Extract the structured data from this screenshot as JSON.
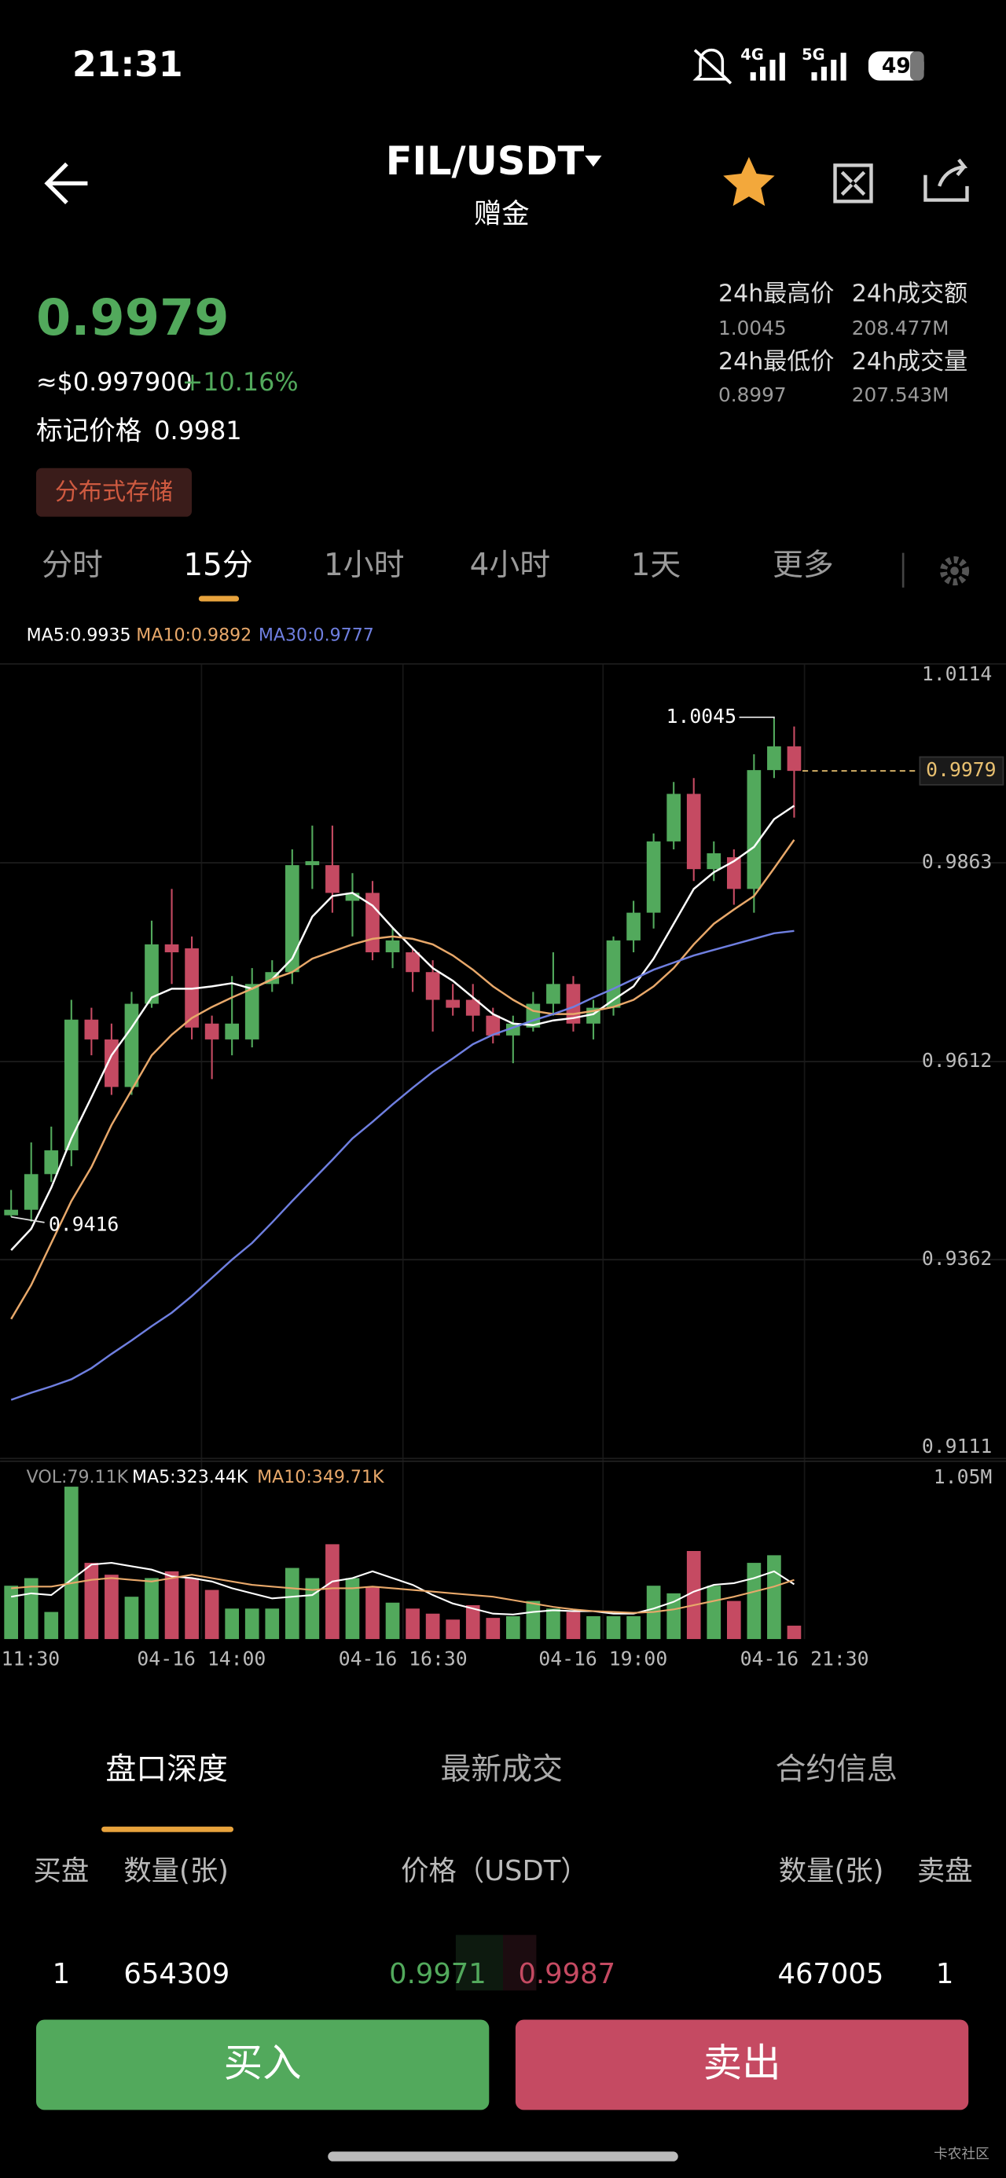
{
  "status": {
    "time": "21:31",
    "net1": "4G",
    "net2": "5G",
    "battery": "49"
  },
  "header": {
    "title": "FIL/USDT",
    "subtitle": "赠金"
  },
  "ticker": {
    "price": "0.9979",
    "usd": "≈$0.997900",
    "change": "+10.16%",
    "mark_label": "标记价格",
    "mark_value": "0.9981",
    "tag": "分布式存储",
    "stats": [
      {
        "label": "24h最高价",
        "value": "1.0045"
      },
      {
        "label": "24h成交额",
        "value": "208.477M"
      },
      {
        "label": "24h最低价",
        "value": "0.8997"
      },
      {
        "label": "24h成交量",
        "value": "207.543M"
      }
    ]
  },
  "intervals": [
    "分时",
    "15分",
    "1小时",
    "4小时",
    "1天",
    "更多"
  ],
  "chart_data": {
    "type": "candlestick",
    "up_color": "#52a95c",
    "down_color": "#c54a62",
    "ylim": [
      0.9111,
      1.0114
    ],
    "yticks": [
      1.0114,
      0.9863,
      0.9612,
      0.9362,
      0.9111
    ],
    "grid": true,
    "open": [
      0.9418,
      0.9425,
      0.947,
      0.95,
      0.9665,
      0.964,
      0.958,
      0.9685,
      0.976,
      0.9755,
      0.966,
      0.964,
      0.964,
      0.971,
      0.9725,
      0.986,
      0.986,
      0.9815,
      0.9825,
      0.975,
      0.975,
      0.9725,
      0.969,
      0.969,
      0.967,
      0.9645,
      0.9655,
      0.9685,
      0.971,
      0.966,
      0.968,
      0.9765,
      0.98,
      0.989,
      0.995,
      0.9855,
      0.987,
      0.983,
      0.998,
      1.001
    ],
    "high": [
      0.945,
      0.951,
      0.953,
      0.969,
      0.968,
      0.966,
      0.97,
      0.979,
      0.983,
      0.977,
      0.967,
      0.972,
      0.973,
      0.974,
      0.988,
      0.991,
      0.991,
      0.985,
      0.984,
      0.978,
      0.9755,
      0.974,
      0.971,
      0.971,
      0.968,
      0.967,
      0.97,
      0.975,
      0.972,
      0.969,
      0.977,
      0.9815,
      0.99,
      0.9965,
      0.997,
      0.989,
      0.988,
      1.0,
      1.0045,
      1.0035
    ],
    "low": [
      0.9416,
      0.941,
      0.946,
      0.948,
      0.962,
      0.957,
      0.957,
      0.968,
      0.971,
      0.964,
      0.959,
      0.962,
      0.963,
      0.97,
      0.971,
      0.983,
      0.98,
      0.977,
      0.974,
      0.973,
      0.97,
      0.965,
      0.967,
      0.965,
      0.9635,
      0.961,
      0.965,
      0.967,
      0.965,
      0.964,
      0.967,
      0.975,
      0.978,
      0.988,
      0.984,
      0.984,
      0.981,
      0.98,
      0.997,
      0.992
    ],
    "close": [
      0.9425,
      0.947,
      0.95,
      0.9665,
      0.964,
      0.958,
      0.9685,
      0.976,
      0.975,
      0.9655,
      0.964,
      0.966,
      0.971,
      0.9725,
      0.986,
      0.9865,
      0.9825,
      0.9825,
      0.975,
      0.9765,
      0.9725,
      0.969,
      0.968,
      0.967,
      0.9645,
      0.966,
      0.9685,
      0.971,
      0.966,
      0.968,
      0.9765,
      0.98,
      0.989,
      0.995,
      0.9855,
      0.9875,
      0.983,
      0.998,
      1.001,
      0.9979
    ],
    "series": [
      {
        "name": "MA5:0.9935",
        "color": "#ffffff",
        "values": [
          0.9374,
          0.9401,
          0.9453,
          0.9515,
          0.9567,
          0.962,
          0.9655,
          0.9693,
          0.9704,
          0.9704,
          0.9707,
          0.9711,
          0.9704,
          0.9716,
          0.9742,
          0.9795,
          0.9821,
          0.9825,
          0.9809,
          0.9781,
          0.9755,
          0.973,
          0.9714,
          0.9693,
          0.9672,
          0.966,
          0.9658,
          0.9664,
          0.9667,
          0.9672,
          0.969,
          0.9707,
          0.9742,
          0.9786,
          0.983,
          0.9851,
          0.9865,
          0.9883,
          0.9918,
          0.9935
        ]
      },
      {
        "name": "MA10:0.9892",
        "color": "#e8a86a",
        "values": [
          0.9287,
          0.933,
          0.9383,
          0.9436,
          0.9479,
          0.9532,
          0.9576,
          0.962,
          0.9646,
          0.9667,
          0.9681,
          0.9693,
          0.9704,
          0.9716,
          0.9725,
          0.9742,
          0.9751,
          0.976,
          0.9767,
          0.977,
          0.9767,
          0.976,
          0.9746,
          0.9728,
          0.9707,
          0.969,
          0.9676,
          0.9672,
          0.9672,
          0.9676,
          0.9681,
          0.969,
          0.9707,
          0.973,
          0.976,
          0.9786,
          0.9804,
          0.9821,
          0.9856,
          0.9892
        ]
      },
      {
        "name": "MA30:0.9777",
        "color": "#6f7fe0",
        "values": [
          0.9185,
          0.9194,
          0.9202,
          0.9211,
          0.9225,
          0.9243,
          0.926,
          0.9278,
          0.9295,
          0.9316,
          0.9339,
          0.9362,
          0.9383,
          0.9409,
          0.9436,
          0.9462,
          0.9488,
          0.9515,
          0.9536,
          0.9558,
          0.9579,
          0.9599,
          0.9616,
          0.9634,
          0.9646,
          0.9655,
          0.9664,
          0.9672,
          0.9681,
          0.9693,
          0.9704,
          0.9716,
          0.9728,
          0.9737,
          0.9746,
          0.9753,
          0.976,
          0.9767,
          0.9774,
          0.9777
        ]
      }
    ],
    "volume": {
      "legend": "VOL:79.11K",
      "ylim": [
        0,
        1050000
      ],
      "yticks": [
        {
          "value": 1050000,
          "label": "1.05M"
        }
      ],
      "values": [
        315000,
        360000,
        160000,
        900000,
        450000,
        380000,
        250000,
        360000,
        400000,
        360000,
        290000,
        180000,
        180000,
        180000,
        420000,
        360000,
        560000,
        360000,
        310000,
        215000,
        180000,
        150000,
        115000,
        200000,
        125000,
        135000,
        225000,
        180000,
        160000,
        135000,
        135000,
        135000,
        315000,
        270000,
        520000,
        315000,
        225000,
        450000,
        495000,
        79110
      ],
      "series": [
        {
          "name": "MA5:323.44K",
          "color": "#ffffff",
          "values": [
            250000,
            270000,
            260000,
            350000,
            440000,
            450000,
            430000,
            410000,
            370000,
            360000,
            340000,
            300000,
            270000,
            240000,
            250000,
            260000,
            340000,
            360000,
            400000,
            360000,
            320000,
            260000,
            210000,
            180000,
            150000,
            145000,
            160000,
            170000,
            165000,
            165000,
            150000,
            150000,
            180000,
            220000,
            280000,
            320000,
            330000,
            360000,
            400000,
            323440
          ]
        },
        {
          "name": "MA10:349.71K",
          "color": "#e8a86a",
          "values": [
            300000,
            310000,
            310000,
            330000,
            350000,
            360000,
            350000,
            340000,
            360000,
            380000,
            360000,
            340000,
            320000,
            310000,
            300000,
            290000,
            300000,
            300000,
            310000,
            300000,
            290000,
            280000,
            270000,
            260000,
            250000,
            230000,
            210000,
            190000,
            175000,
            165000,
            160000,
            155000,
            160000,
            175000,
            200000,
            225000,
            250000,
            280000,
            310000,
            349710
          ]
        }
      ]
    },
    "x_labels": [
      "11:30",
      "04-16 14:00",
      "04-16 16:30",
      "04-16 19:00",
      "04-16 21:30"
    ]
  },
  "depth": {
    "tabs": [
      "盘口深度",
      "最新成交",
      "合约信息"
    ],
    "headers": [
      "买盘",
      "数量(张)",
      "价格（USDT）",
      "数量(张)",
      "卖盘"
    ],
    "rows": [
      [
        "1",
        "654309",
        "0.9971",
        "0.9987",
        "467005",
        "1"
      ]
    ]
  },
  "actions": {
    "buy": "买入",
    "sell": "卖出"
  },
  "watermark": "卡农社区"
}
